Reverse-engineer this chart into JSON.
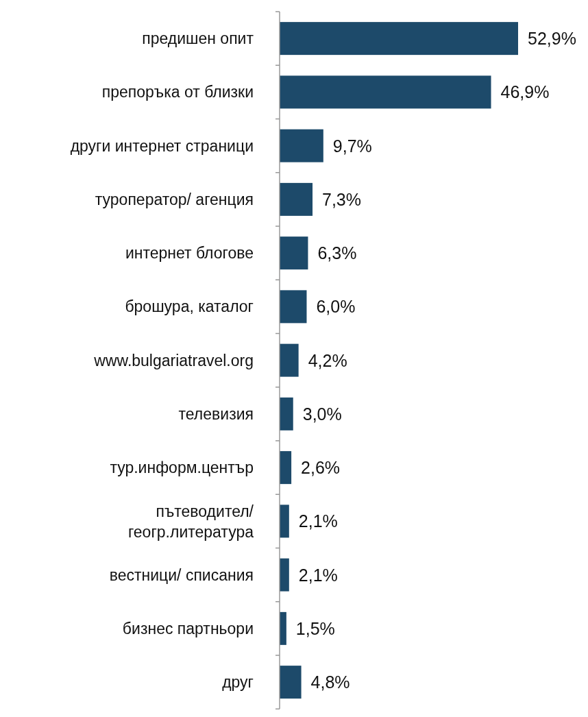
{
  "chart_data": {
    "type": "bar",
    "orientation": "horizontal",
    "categories": [
      "предишен опит",
      "препоръка от близки",
      "други интернет страници",
      "туроператор/ агенция",
      "интернет блогове",
      "брошура, каталог",
      "www.bulgariatravel.org",
      "телевизия",
      "тур.информ.център",
      "пътеводител/ геогр.литература",
      "вестници/ списания",
      "бизнес партньори",
      "друг"
    ],
    "values": [
      52.9,
      46.9,
      9.7,
      7.3,
      6.3,
      6.0,
      4.2,
      3.0,
      2.6,
      2.1,
      2.1,
      1.5,
      4.8
    ],
    "value_labels": [
      "52,9%",
      "46,9%",
      "9,7%",
      "7,3%",
      "6,3%",
      "6,0%",
      "4,2%",
      "3,0%",
      "2,6%",
      "2,1%",
      "2,1%",
      "1,5%",
      "4,8%"
    ],
    "color": "#1d4a6a"
  }
}
